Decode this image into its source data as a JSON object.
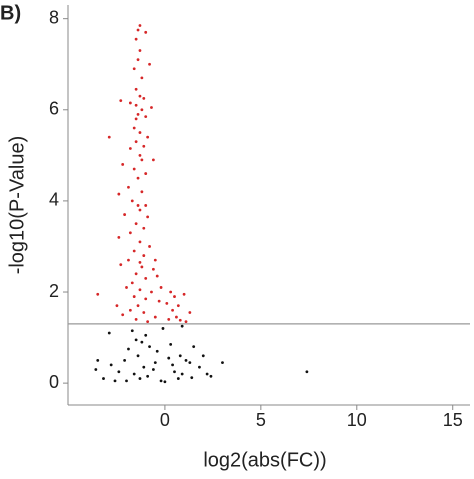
{
  "panel_label": "B)",
  "chart_data": {
    "type": "scatter",
    "xlabel": "log2(abs(FC))",
    "ylabel": "-log10(P-Value)",
    "xlim": [
      -5.05,
      15.9
    ],
    "ylim": [
      -0.48,
      8.3
    ],
    "xticks": [
      0,
      5,
      10,
      15
    ],
    "yticks": [
      0,
      2,
      4,
      6,
      8
    ],
    "hline": 1.3,
    "hline_color": "#999999",
    "series": [
      {
        "color": "#d62728",
        "x": [
          -1.3,
          -1.4,
          -1.0,
          -1.5,
          -1.3,
          -1.4,
          -0.8,
          -1.6,
          -1.2,
          -1.5,
          -1.3,
          -1.1,
          -1.5,
          -2.3,
          -1.8,
          -1.2,
          -0.7,
          -1.4,
          -1.0,
          -1.6,
          -1.3,
          -0.9,
          -2.9,
          -1.5,
          -1.1,
          -1.8,
          -1.3,
          -0.6,
          -2.2,
          -1.6,
          -1.0,
          -1.4,
          -1.9,
          -1.2,
          -2.4,
          -1.7,
          -1.0,
          -1.3,
          -2.1,
          -0.9,
          -1.5,
          -1.1,
          -1.8,
          -2.4,
          -1.3,
          -0.8,
          -1.6,
          -1.1,
          -1.9,
          -2.3,
          -1.2,
          -0.6,
          -1.5,
          -1.0,
          -0.4,
          -1.7,
          -2.0,
          -1.3,
          -0.7,
          -0.2,
          0.3,
          -3.5,
          -1.6,
          -1.0,
          0.5,
          1.0,
          -2.5,
          -1.4,
          -0.3,
          0.1,
          0.7,
          -1.8,
          -1.1,
          0.4,
          1.3,
          -2.2,
          -0.5,
          0.6,
          -1.5,
          0.2,
          0.8,
          -0.9,
          1.1,
          -1.3,
          -0.5,
          -1.4,
          -1.2,
          -1.5
        ],
        "values": [
          7.85,
          7.75,
          7.7,
          7.55,
          7.3,
          7.1,
          7.0,
          6.9,
          6.7,
          6.45,
          6.3,
          6.25,
          6.1,
          6.2,
          6.15,
          6.0,
          6.05,
          5.9,
          5.85,
          5.6,
          5.5,
          5.4,
          5.4,
          5.3,
          5.2,
          5.15,
          5.0,
          4.9,
          4.8,
          4.7,
          4.6,
          4.5,
          4.3,
          4.2,
          4.15,
          4.0,
          3.9,
          3.8,
          3.7,
          3.65,
          3.5,
          3.4,
          3.3,
          3.2,
          3.1,
          3.0,
          2.9,
          2.8,
          2.7,
          2.6,
          2.55,
          2.5,
          2.4,
          2.3,
          2.35,
          2.2,
          2.1,
          2.05,
          2.0,
          2.1,
          2.0,
          1.95,
          1.9,
          1.85,
          1.9,
          1.95,
          1.7,
          1.7,
          1.8,
          1.75,
          1.7,
          1.6,
          1.55,
          1.6,
          1.55,
          1.5,
          1.45,
          1.45,
          1.4,
          1.4,
          1.38,
          1.35,
          1.35,
          2.65,
          2.7,
          3.9,
          4.9,
          5.8
        ]
      },
      {
        "color": "#111111",
        "x": [
          -1.7,
          -2.9,
          -1.0,
          -0.1,
          0.9,
          -1.5,
          -1.2,
          -0.8,
          -1.9,
          -0.4,
          0.3,
          1.5,
          -1.4,
          -2.1,
          -3.5,
          0.2,
          0.8,
          2.0,
          1.3,
          -0.5,
          -2.8,
          -1.1,
          0.4,
          1.8,
          3.0,
          -3.6,
          -2.4,
          -1.6,
          -0.6,
          0.9,
          2.2,
          7.4,
          -3.2,
          -2.0,
          -1.3,
          -0.2,
          0.0,
          0.7,
          1.4,
          2.4,
          -0.9,
          0.5,
          -2.6,
          1.1
        ],
        "values": [
          1.15,
          1.1,
          1.05,
          1.2,
          1.25,
          0.95,
          0.9,
          0.8,
          0.75,
          0.7,
          0.85,
          0.8,
          0.6,
          0.5,
          0.5,
          0.55,
          0.6,
          0.6,
          0.45,
          0.45,
          0.4,
          0.35,
          0.4,
          0.35,
          0.45,
          0.3,
          0.25,
          0.2,
          0.3,
          0.2,
          0.2,
          0.25,
          0.1,
          0.05,
          0.1,
          0.05,
          0.03,
          0.1,
          0.12,
          0.15,
          0.15,
          0.25,
          0.05,
          0.5
        ]
      }
    ]
  }
}
